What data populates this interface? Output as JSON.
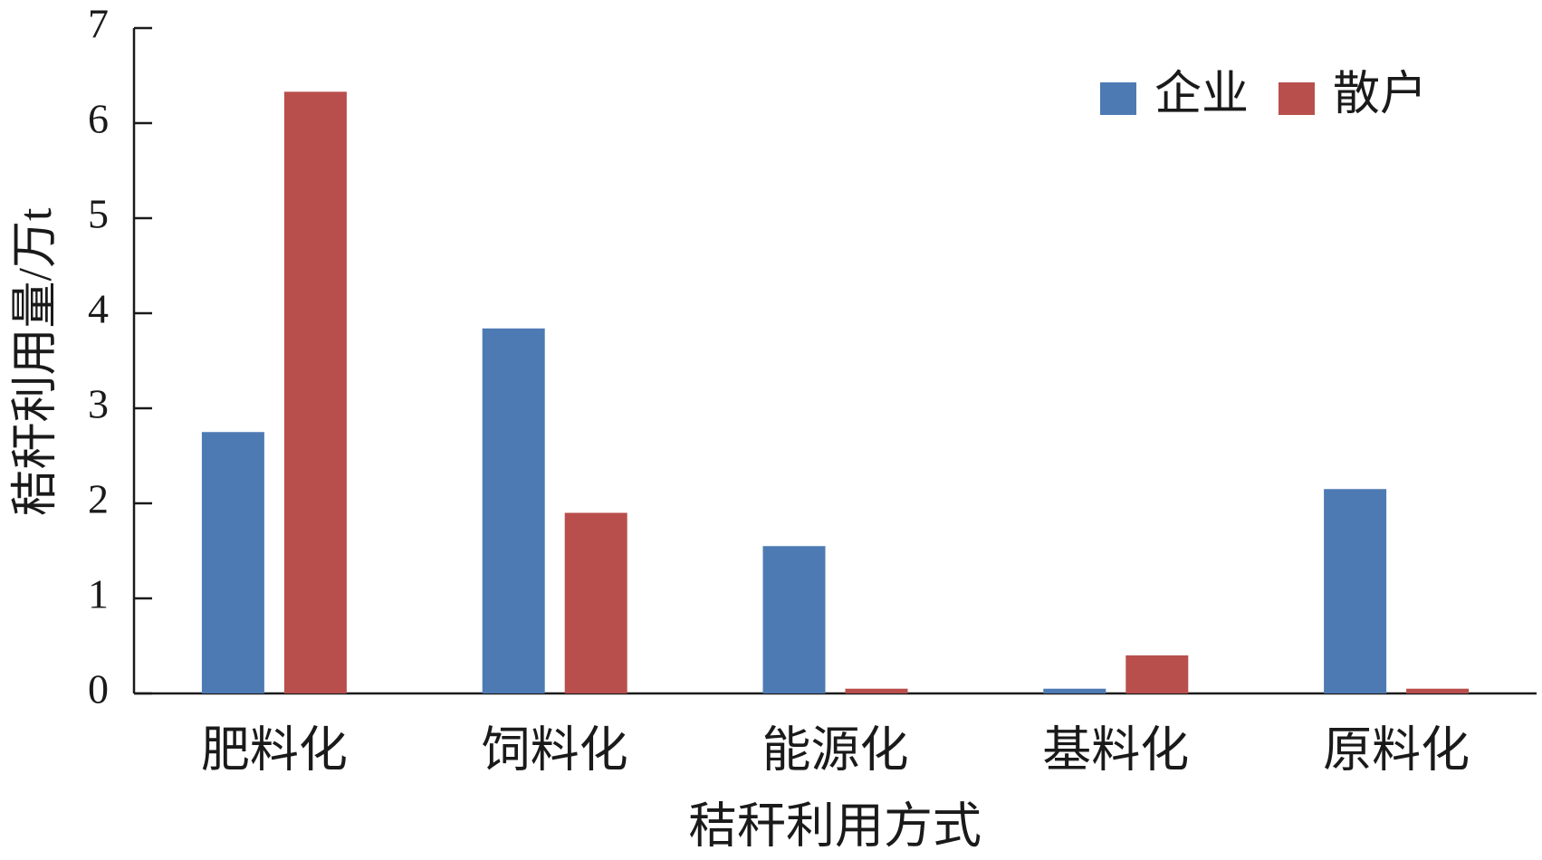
{
  "chart_data": {
    "type": "bar",
    "x_label": "秸秆利用方式",
    "y_label": "秸秆利用量/万t",
    "categories": [
      "肥料化",
      "饲料化",
      "能源化",
      "基料化",
      "原料化"
    ],
    "series": [
      {
        "name": "企业",
        "color": "#4e7ab3",
        "values": [
          2.75,
          3.84,
          1.55,
          0.05,
          2.15
        ]
      },
      {
        "name": "散户",
        "color": "#b84f4c",
        "values": [
          6.33,
          1.9,
          0.05,
          0.4,
          0.05
        ]
      }
    ],
    "ylim": [
      0,
      7
    ],
    "yticks": [
      0,
      1,
      2,
      3,
      4,
      5,
      6,
      7
    ],
    "legend": "upper-right"
  }
}
